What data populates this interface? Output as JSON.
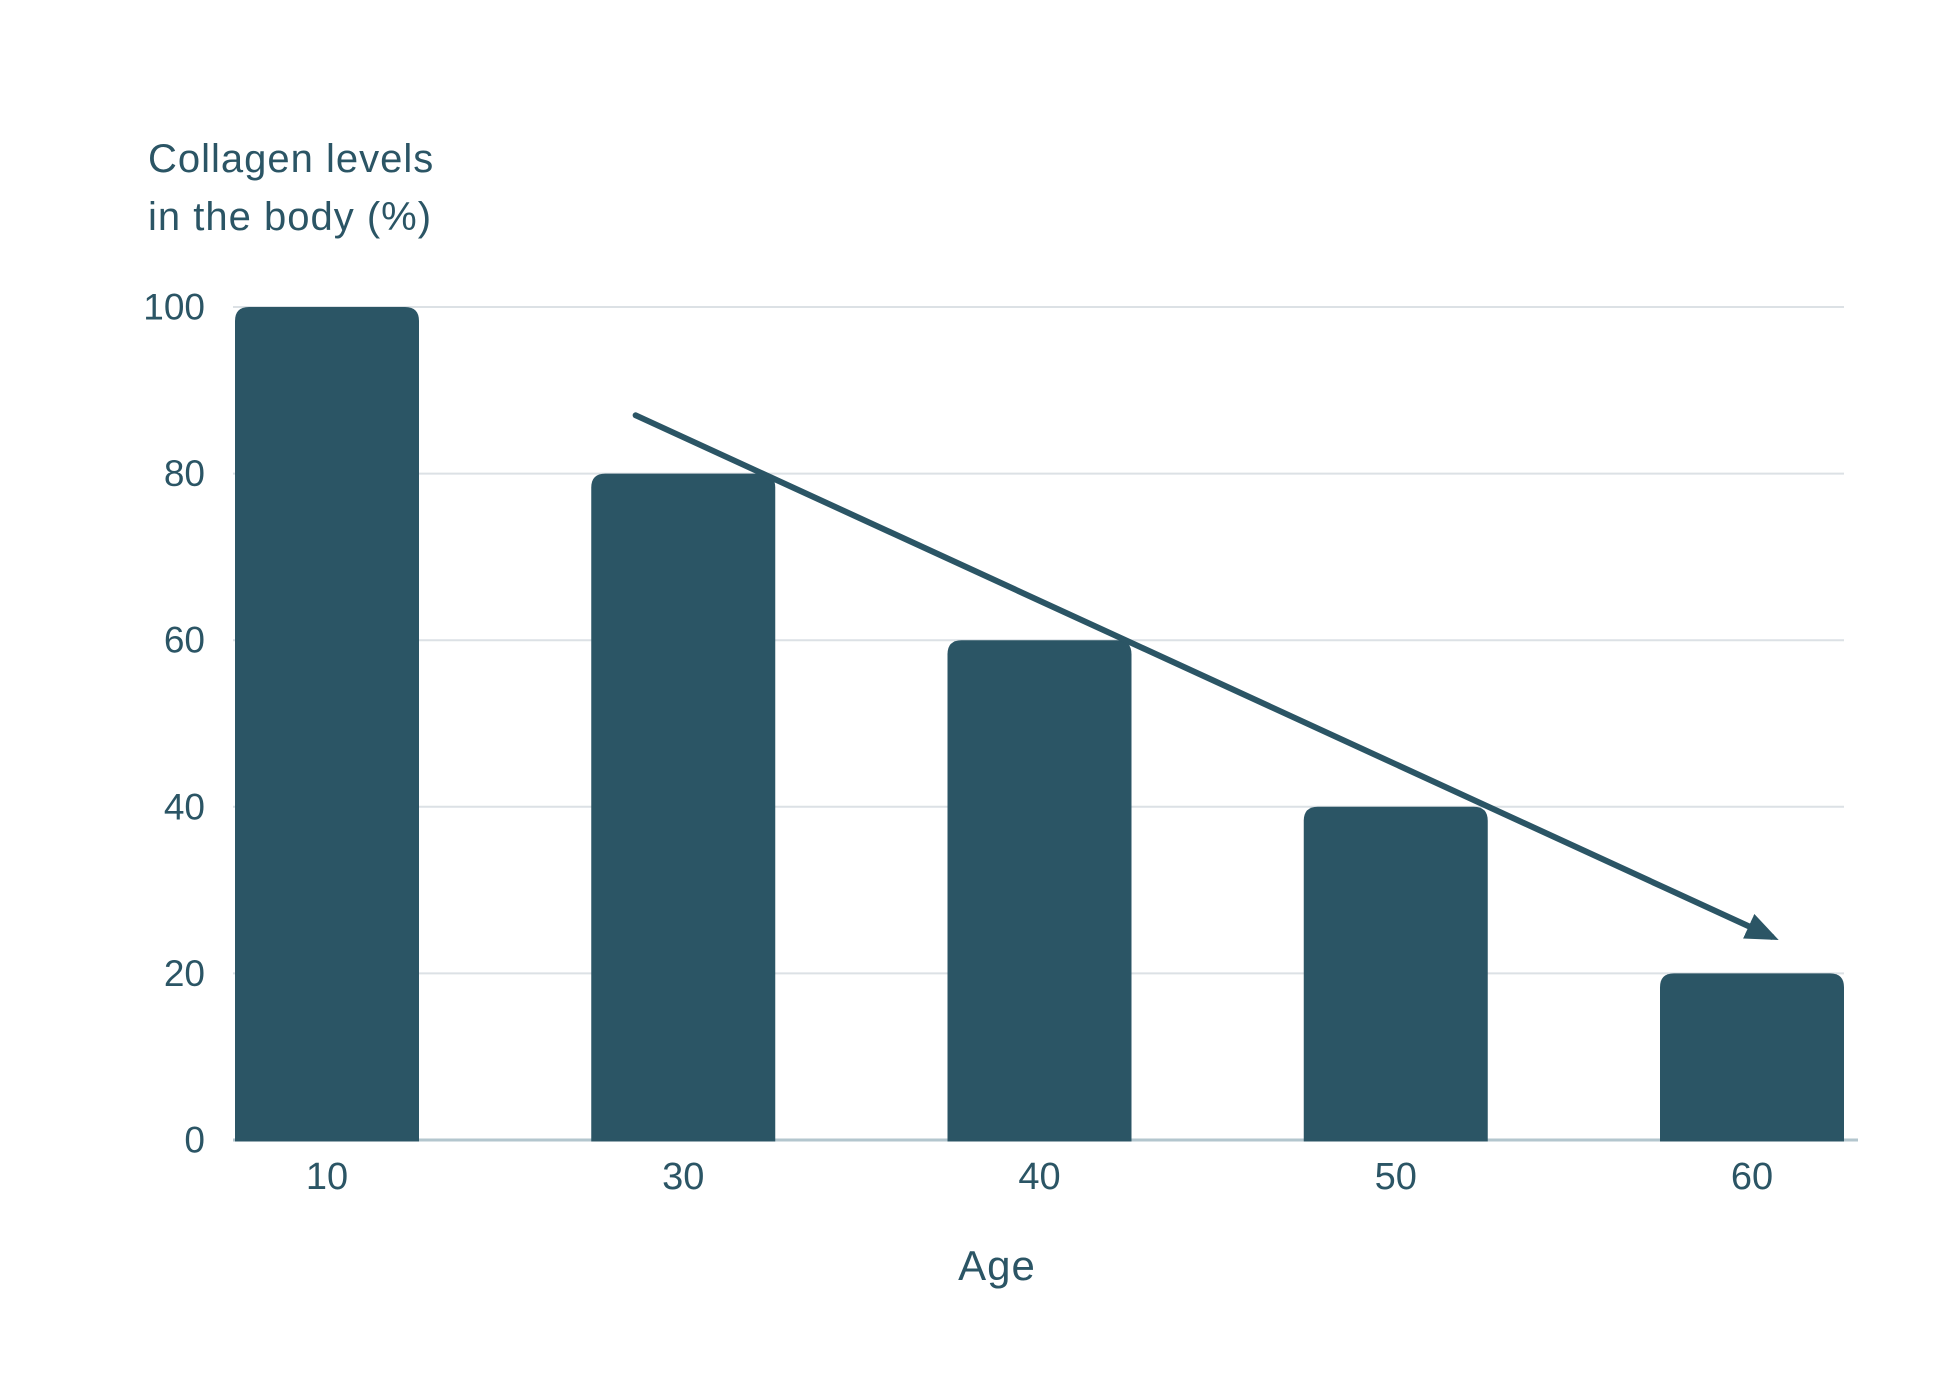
{
  "page": {
    "background_color": "#ffffff"
  },
  "chart_data": {
    "type": "bar",
    "title": "Collagen levels in the body (%)",
    "title_lines": [
      "Collagen levels",
      "in the body (%)"
    ],
    "xlabel": "Age",
    "ylabel": "Collagen levels in the body (%)",
    "categories": [
      "10",
      "30",
      "40",
      "50",
      "60"
    ],
    "values": [
      100,
      80,
      60,
      40,
      20
    ],
    "ylim": [
      0,
      100
    ],
    "yticks": [
      0,
      20,
      40,
      60,
      80,
      100
    ],
    "grid": "horizontal",
    "legend": "none",
    "bar_color": "#2b5565",
    "text_color": "#2b5565",
    "gridline_color": "#dce1e5",
    "axis_line_color": "#b3c6ce",
    "trend_arrow": {
      "description": "straight declining trend arrow from above the age-30 bar to above the age-60 bar",
      "color": "#2b5565",
      "from": {
        "x_frac": 0.249,
        "value": 87
      },
      "to": {
        "x_frac": 0.955,
        "value": 24.4
      }
    }
  }
}
